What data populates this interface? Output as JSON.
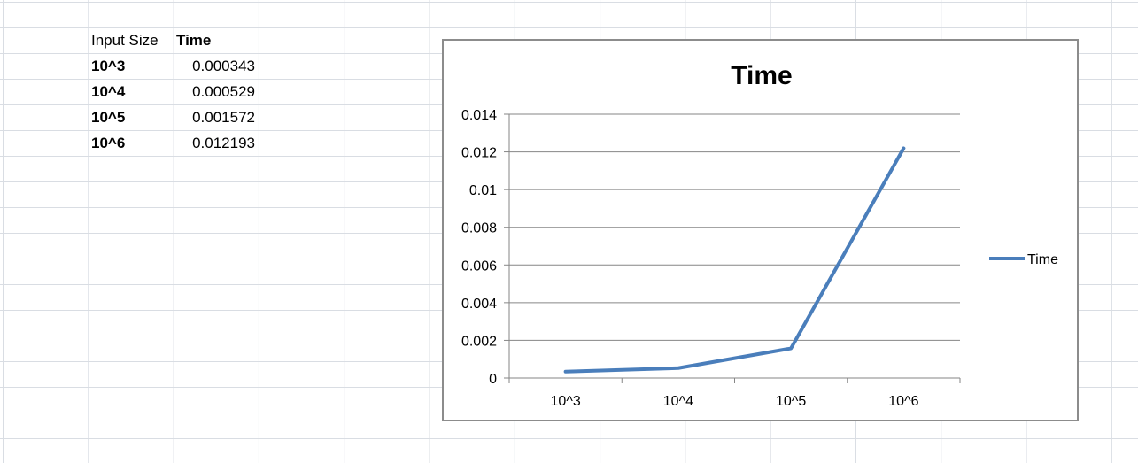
{
  "sheet": {
    "header": {
      "col_a": "Input Size",
      "col_b": "Time"
    },
    "rows": [
      {
        "size": "10^3",
        "time": "0.000343"
      },
      {
        "size": "10^4",
        "time": "0.000529"
      },
      {
        "size": "10^5",
        "time": "0.001572"
      },
      {
        "size": "10^6",
        "time": "0.012193"
      }
    ]
  },
  "chart_data": {
    "type": "line",
    "title": "Time",
    "categories": [
      "10^3",
      "10^4",
      "10^5",
      "10^6"
    ],
    "series": [
      {
        "name": "Time",
        "values": [
          0.000343,
          0.000529,
          0.001572,
          0.012193
        ],
        "color": "#4a7ebb"
      }
    ],
    "ylim": [
      0,
      0.014
    ],
    "yticks": [
      0,
      0.002,
      0.004,
      0.006,
      0.008,
      0.01,
      0.012,
      0.014
    ],
    "ytick_labels": [
      "0",
      "0.002",
      "0.004",
      "0.006",
      "0.008",
      "0.01",
      "0.012",
      "0.014"
    ],
    "grid": true,
    "legend": "right",
    "xlabel": "",
    "ylabel": ""
  }
}
